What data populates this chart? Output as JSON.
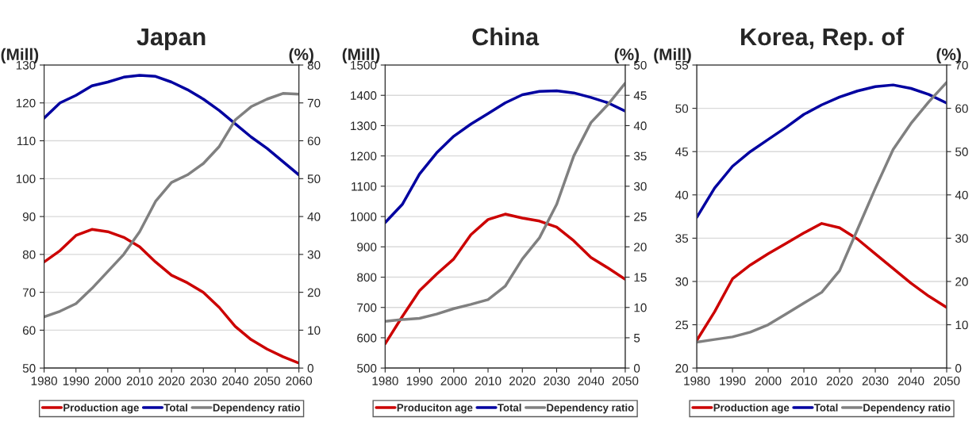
{
  "chart_data": [
    {
      "type": "line",
      "title": "Japan",
      "ylabel": "(Mill)",
      "y2label": "(%)",
      "xlim": [
        1980,
        2060
      ],
      "xticks": [
        1980,
        1990,
        2000,
        2010,
        2020,
        2030,
        2040,
        2050,
        2060
      ],
      "ylim": [
        50,
        130
      ],
      "yticks": [
        50,
        60,
        70,
        80,
        90,
        100,
        110,
        120,
        130
      ],
      "y2lim": [
        0,
        80
      ],
      "y2ticks": [
        0,
        10,
        20,
        30,
        40,
        50,
        60,
        70,
        80
      ],
      "grid": "y",
      "legend": "bottom",
      "marker": "none",
      "line_style": "solid",
      "x": [
        1980,
        1985,
        1990,
        1995,
        2000,
        2005,
        2010,
        2015,
        2020,
        2025,
        2030,
        2035,
        2040,
        2045,
        2050,
        2055,
        2060
      ],
      "series": [
        {
          "name": "Production age",
          "color": "#cc0000",
          "values": [
            78,
            81,
            85,
            86.6,
            86,
            84.5,
            82,
            78,
            74.5,
            72.5,
            70,
            66,
            61,
            57.5,
            55,
            53,
            51.3
          ]
        },
        {
          "name": "Total",
          "color": "#0000a0",
          "values": [
            116,
            120,
            122,
            124.5,
            125.5,
            126.8,
            127.3,
            127,
            125.5,
            123.5,
            121,
            118,
            114.5,
            111,
            108,
            104.5,
            101
          ]
        },
        {
          "name": "Dependency ratio",
          "color": "#808080",
          "axis": "y2",
          "values": [
            13.5,
            15,
            17,
            21,
            25.5,
            30,
            36,
            44,
            49,
            51,
            54,
            58.5,
            65.5,
            69,
            71,
            72.5,
            72.3
          ]
        }
      ]
    },
    {
      "type": "line",
      "title": "China",
      "ylabel": "(Mill)",
      "y2label": "(%)",
      "xlim": [
        1980,
        2050
      ],
      "xticks": [
        1980,
        1990,
        2000,
        2010,
        2020,
        2030,
        2040,
        2050
      ],
      "ylim": [
        500,
        1500
      ],
      "yticks": [
        500,
        600,
        700,
        800,
        900,
        1000,
        1100,
        1200,
        1300,
        1400,
        1500
      ],
      "y2lim": [
        0,
        50
      ],
      "y2ticks": [
        0,
        5,
        10,
        15,
        20,
        25,
        30,
        35,
        40,
        45,
        50
      ],
      "grid": "y",
      "legend": "bottom",
      "marker": "none",
      "line_style": "solid",
      "x": [
        1980,
        1985,
        1990,
        1995,
        2000,
        2005,
        2010,
        2015,
        2020,
        2025,
        2030,
        2035,
        2040,
        2045,
        2050
      ],
      "series": [
        {
          "name": "Produciton age",
          "color": "#cc0000",
          "values": [
            580,
            670,
            755,
            810,
            860,
            940,
            990,
            1008,
            995,
            985,
            965,
            920,
            865,
            830,
            793
          ]
        },
        {
          "name": "Total",
          "color": "#0000a0",
          "values": [
            980,
            1040,
            1140,
            1210,
            1265,
            1305,
            1340,
            1375,
            1402,
            1413,
            1415,
            1408,
            1393,
            1375,
            1348
          ]
        },
        {
          "name": "Dependency ratio",
          "color": "#808080",
          "axis": "y2",
          "values": [
            7.7,
            8.0,
            8.2,
            8.9,
            9.8,
            10.5,
            11.3,
            13.5,
            18,
            21.5,
            27,
            35,
            40.5,
            43.5,
            47
          ]
        }
      ]
    },
    {
      "type": "line",
      "title": "Korea, Rep. of",
      "ylabel": "(Mill)",
      "y2label": "(%)",
      "xlim": [
        1980,
        2050
      ],
      "xticks": [
        1980,
        1990,
        2000,
        2010,
        2020,
        2030,
        2040,
        2050
      ],
      "ylim": [
        20,
        55
      ],
      "yticks": [
        20,
        25,
        30,
        35,
        40,
        45,
        50,
        55
      ],
      "y2lim": [
        0,
        70
      ],
      "y2ticks": [
        0,
        10,
        20,
        30,
        40,
        50,
        60,
        70
      ],
      "grid": "y",
      "legend": "bottom",
      "marker": "none",
      "line_style": "solid",
      "x": [
        1980,
        1985,
        1990,
        1995,
        2000,
        2005,
        2010,
        2015,
        2020,
        2025,
        2030,
        2035,
        2040,
        2045,
        2050
      ],
      "series": [
        {
          "name": "Production age",
          "color": "#cc0000",
          "values": [
            23.2,
            26.5,
            30.3,
            31.9,
            33.2,
            34.4,
            35.6,
            36.7,
            36.2,
            34.9,
            33.2,
            31.5,
            29.8,
            28.3,
            27
          ]
        },
        {
          "name": "Total",
          "color": "#0000a0",
          "values": [
            37.4,
            40.8,
            43.3,
            45,
            46.4,
            47.8,
            49.3,
            50.4,
            51.3,
            52,
            52.5,
            52.7,
            52.3,
            51.6,
            50.6
          ]
        },
        {
          "name": "Dependency ratio",
          "color": "#808080",
          "axis": "y2",
          "values": [
            6,
            6.6,
            7.2,
            8.3,
            10,
            12.5,
            15,
            17.5,
            22.5,
            32,
            41.5,
            50.5,
            56.5,
            61.5,
            66
          ]
        }
      ]
    }
  ]
}
